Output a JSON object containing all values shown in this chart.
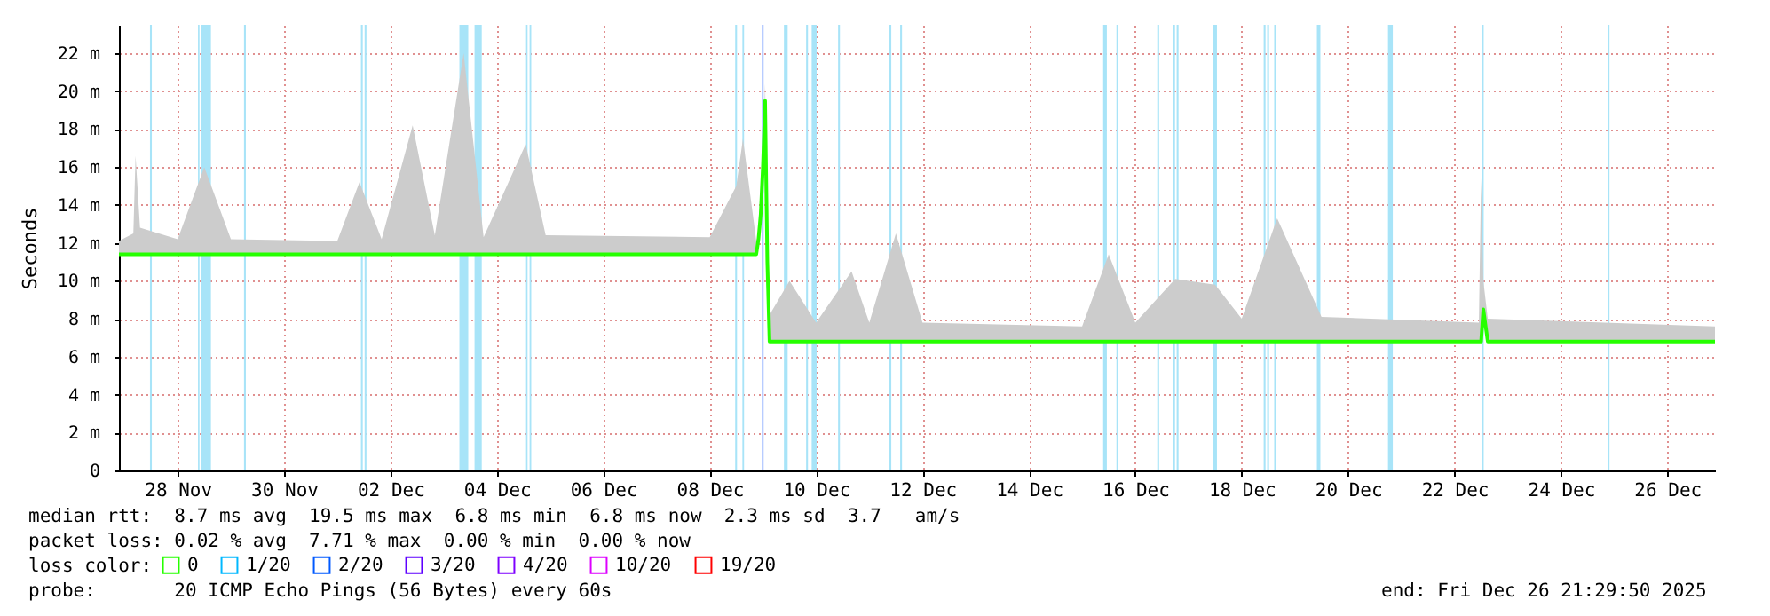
{
  "chart_data": {
    "type": "line",
    "ylabel": "Seconds",
    "legend_title": "loss color:",
    "legend": "bottom left",
    "grid": true,
    "marker": "none",
    "line_style": "solid",
    "xlim": [
      "2025-11-26T21:30",
      "2025-12-26T21:30"
    ],
    "xticks": [
      {
        "value": "2025-11-28",
        "label": "28 Nov"
      },
      {
        "value": "2025-11-30",
        "label": "30 Nov"
      },
      {
        "value": "2025-12-02",
        "label": "02 Dec"
      },
      {
        "value": "2025-12-04",
        "label": "04 Dec"
      },
      {
        "value": "2025-12-06",
        "label": "06 Dec"
      },
      {
        "value": "2025-12-08",
        "label": "08 Dec"
      },
      {
        "value": "2025-12-10",
        "label": "10 Dec"
      },
      {
        "value": "2025-12-12",
        "label": "12 Dec"
      },
      {
        "value": "2025-12-14",
        "label": "14 Dec"
      },
      {
        "value": "2025-12-16",
        "label": "16 Dec"
      },
      {
        "value": "2025-12-18",
        "label": "18 Dec"
      },
      {
        "value": "2025-12-20",
        "label": "20 Dec"
      },
      {
        "value": "2025-12-22",
        "label": "22 Dec"
      },
      {
        "value": "2025-12-24",
        "label": "24 Dec"
      },
      {
        "value": "2025-12-26",
        "label": "26 Dec"
      }
    ],
    "ylim": [
      0,
      23.5
    ],
    "yticks": [
      0,
      {
        "value": 2,
        "label": "2 m"
      },
      {
        "value": 4,
        "label": "4 m"
      },
      {
        "value": 6,
        "label": "6 m"
      },
      {
        "value": 8,
        "label": "8 m"
      },
      {
        "value": 10,
        "label": "10 m"
      },
      {
        "value": 12,
        "label": "12 m"
      },
      {
        "value": 14,
        "label": "14 m"
      },
      {
        "value": 16,
        "label": "16 m"
      },
      {
        "value": 18,
        "label": "18 m"
      },
      {
        "value": 20,
        "label": "20 m"
      },
      {
        "value": 22,
        "label": "22 m"
      }
    ],
    "series": [
      {
        "name": "0",
        "color": "#26ff00",
        "x": [
          "2025-11-26T21:30",
          "2025-11-27T04:00",
          "2025-11-27T05:00",
          "2025-11-27T07:00",
          "2025-11-28T00:00",
          "2025-11-28T12:00",
          "2025-11-29T00:00",
          "2025-12-01T00:00",
          "2025-12-01T10:00",
          "2025-12-01T20:00",
          "2025-12-02T10:00",
          "2025-12-02T20:00",
          "2025-12-03T09:00",
          "2025-12-03T18:00",
          "2025-12-04T13:00",
          "2025-12-04T22:00",
          "2025-12-08T00:00",
          "2025-12-08T12:00",
          "2025-12-08T15:00",
          "2025-12-08T21:00",
          "2025-12-08T22:00",
          "2025-12-08T23:00",
          "2025-12-09T00:00",
          "2025-12-09T01:00",
          "2025-12-09T02:00",
          "2025-12-09T03:00",
          "2025-12-09T12:00",
          "2025-12-10T00:00",
          "2025-12-10T16:00",
          "2025-12-11T00:00",
          "2025-12-11T12:00",
          "2025-12-12T00:00",
          "2025-12-15T00:00",
          "2025-12-15T12:00",
          "2025-12-16T00:00",
          "2025-12-16T18:00",
          "2025-12-17T12:00",
          "2025-12-18T00:00",
          "2025-12-18T16:00",
          "2025-12-19T12:00",
          "2025-12-22T11:00",
          "2025-12-22T12:00",
          "2025-12-22T13:00",
          "2025-12-22T15:00",
          "2025-12-26T21:30"
        ],
        "values": [
          11.4,
          11.4,
          11.4,
          11.4,
          11.4,
          11.4,
          11.4,
          11.4,
          11.4,
          11.4,
          11.4,
          11.4,
          11.4,
          11.4,
          11.4,
          11.4,
          11.4,
          11.4,
          11.4,
          11.4,
          12.2,
          13.5,
          16,
          19.5,
          11,
          6.8,
          6.8,
          6.8,
          6.8,
          6.8,
          6.8,
          6.8,
          6.8,
          6.8,
          6.8,
          6.8,
          6.8,
          6.8,
          6.8,
          6.8,
          6.8,
          6.8,
          8.5,
          6.8,
          6.8
        ],
        "lower": [
          11.4,
          11.4,
          11.4,
          11.4,
          11.4,
          11.4,
          11.4,
          11.4,
          11.4,
          11.4,
          11.4,
          11.4,
          11.4,
          11.4,
          11.4,
          11.4,
          11.4,
          11.4,
          11.4,
          11.4,
          12.2,
          13.5,
          16,
          19.5,
          11,
          6.8,
          6.8,
          6.8,
          6.8,
          6.8,
          6.8,
          6.8,
          6.8,
          6.8,
          6.8,
          6.8,
          6.8,
          6.8,
          6.8,
          6.8,
          6.8,
          6.8,
          8.5,
          6.8,
          6.8
        ],
        "upper": [
          12.1,
          12.5,
          16.6,
          12.8,
          12.2,
          16,
          12.2,
          12.1,
          15.2,
          12.2,
          18.2,
          12.4,
          22,
          12.3,
          17.2,
          12.4,
          12.3,
          15,
          17.5,
          12.1,
          12.4,
          13.8,
          16.5,
          20.4,
          11.5,
          8.2,
          10,
          7.8,
          10.5,
          7.8,
          12.5,
          7.8,
          7.6,
          11.4,
          7.8,
          10.1,
          9.8,
          8,
          13.3,
          8.1,
          7.8,
          15.4,
          10,
          8,
          7.6
        ]
      },
      {
        "name": "1/20",
        "color": "#00b8ff"
      },
      {
        "name": "2/20",
        "color": "#0059ff"
      },
      {
        "name": "3/20",
        "color": "#5e00ff"
      },
      {
        "name": "4/20",
        "color": "#7e00ff"
      },
      {
        "name": "10/20",
        "color": "#dd00ff"
      },
      {
        "name": "19/20",
        "color": "#ff0000"
      }
    ],
    "bands": [
      {
        "axis": "x",
        "from": "2025-11-27T11:30",
        "to": "2025-11-27T12:20",
        "color": "#a8e4f8"
      },
      {
        "axis": "x",
        "from": "2025-11-28T09:10",
        "to": "2025-11-28T09:50",
        "color": "#a8e4f8"
      },
      {
        "axis": "x",
        "from": "2025-11-28T10:40",
        "to": "2025-11-28T15:00",
        "color": "#a8e4f8"
      },
      {
        "axis": "x",
        "from": "2025-11-29T05:55",
        "to": "2025-11-29T06:45",
        "color": "#a8e4f8"
      },
      {
        "axis": "x",
        "from": "2025-12-01T10:40",
        "to": "2025-12-01T11:30",
        "color": "#a8e4f8"
      },
      {
        "axis": "x",
        "from": "2025-12-01T12:20",
        "to": "2025-12-01T13:10",
        "color": "#a8e4f8"
      },
      {
        "axis": "x",
        "from": "2025-12-03T07:05",
        "to": "2025-12-03T11:05",
        "color": "#a8e4f8"
      },
      {
        "axis": "x",
        "from": "2025-12-03T13:55",
        "to": "2025-12-03T17:10",
        "color": "#a8e4f8"
      },
      {
        "axis": "x",
        "from": "2025-12-04T13:10",
        "to": "2025-12-04T13:50",
        "color": "#a8e4f8"
      },
      {
        "axis": "x",
        "from": "2025-12-04T14:45",
        "to": "2025-12-04T15:30",
        "color": "#a8e4f8"
      },
      {
        "axis": "x",
        "from": "2025-12-08T11:30",
        "to": "2025-12-08T12:20",
        "color": "#a8e4f8"
      },
      {
        "axis": "x",
        "from": "2025-12-08T14:45",
        "to": "2025-12-08T15:30",
        "color": "#a8e4f8"
      },
      {
        "axis": "x",
        "from": "2025-12-08T23:30",
        "to": "2025-12-09T00:20",
        "color": "#a8c0ff"
      },
      {
        "axis": "x",
        "from": "2025-12-09T09:30",
        "to": "2025-12-09T11:10",
        "color": "#a8e4f8"
      },
      {
        "axis": "x",
        "from": "2025-12-09T19:30",
        "to": "2025-12-09T20:20",
        "color": "#a8e4f8"
      },
      {
        "axis": "x",
        "from": "2025-12-09T22:00",
        "to": "2025-12-10T00:15",
        "color": "#a8e4f8"
      },
      {
        "axis": "x",
        "from": "2025-12-10T09:55",
        "to": "2025-12-10T10:45",
        "color": "#a8e4f8"
      },
      {
        "axis": "x",
        "from": "2025-12-11T09:05",
        "to": "2025-12-11T09:55",
        "color": "#a8e4f8"
      },
      {
        "axis": "x",
        "from": "2025-12-11T13:55",
        "to": "2025-12-11T14:45",
        "color": "#a8e4f8"
      },
      {
        "axis": "x",
        "from": "2025-12-15T09:30",
        "to": "2025-12-15T11:10",
        "color": "#a8e4f8"
      },
      {
        "axis": "x",
        "from": "2025-12-15T15:30",
        "to": "2025-12-15T16:20",
        "color": "#a8e4f8"
      },
      {
        "axis": "x",
        "from": "2025-12-16T09:55",
        "to": "2025-12-16T10:45",
        "color": "#a8e4f8"
      },
      {
        "axis": "x",
        "from": "2025-12-16T17:05",
        "to": "2025-12-16T17:55",
        "color": "#a8e4f8"
      },
      {
        "axis": "x",
        "from": "2025-12-16T18:40",
        "to": "2025-12-16T19:30",
        "color": "#a8e4f8"
      },
      {
        "axis": "x",
        "from": "2025-12-17T11:00",
        "to": "2025-12-17T12:50",
        "color": "#a8e4f8"
      },
      {
        "axis": "x",
        "from": "2025-12-18T09:55",
        "to": "2025-12-18T10:45",
        "color": "#a8e4f8"
      },
      {
        "axis": "x",
        "from": "2025-12-18T11:30",
        "to": "2025-12-18T12:20",
        "color": "#a8e4f8"
      },
      {
        "axis": "x",
        "from": "2025-12-18T14:40",
        "to": "2025-12-18T15:30",
        "color": "#a8e4f8"
      },
      {
        "axis": "x",
        "from": "2025-12-19T09:55",
        "to": "2025-12-19T11:30",
        "color": "#a8e4f8"
      },
      {
        "axis": "x",
        "from": "2025-12-20T18:00",
        "to": "2025-12-20T20:10",
        "color": "#a8e4f8"
      },
      {
        "axis": "x",
        "from": "2025-12-22T12:20",
        "to": "2025-12-22T13:10",
        "color": "#a8e4f8"
      },
      {
        "axis": "x",
        "from": "2025-12-24T21:05",
        "to": "2025-12-24T21:55",
        "color": "#a8e4f8"
      }
    ],
    "annotations": [
      "median rtt:  8.7 ms avg  19.5 ms max  6.8 ms min  6.8 ms now  2.3 ms sd  3.7   am/s",
      "packet loss: 0.02 % avg  7.71 % max  0.00 % min  0.00 % now",
      "probe:       20 ICMP Echo Pings (56 Bytes) every 60s",
      "end: Fri Dec 26 21:29:50 2025"
    ]
  }
}
